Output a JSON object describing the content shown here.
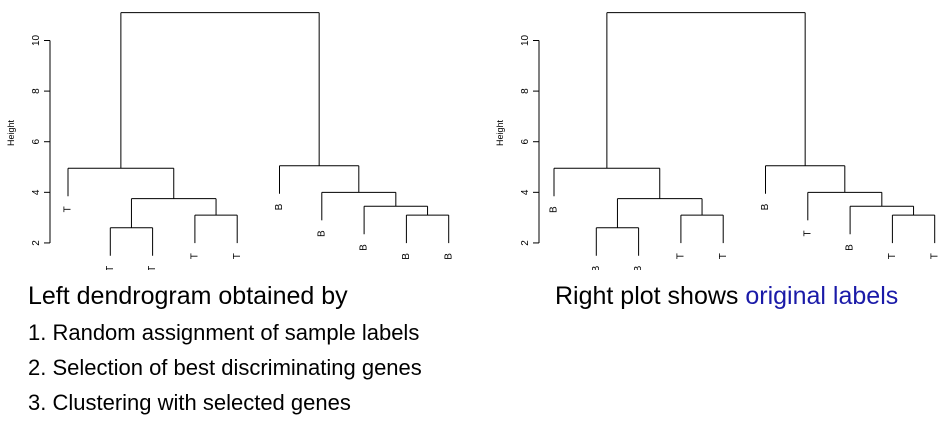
{
  "chart_data": [
    {
      "type": "dendrogram",
      "ylabel": "Height",
      "ylim": [
        1.8,
        11.6
      ],
      "yticks": [
        2,
        4,
        6,
        8,
        10
      ],
      "leaves": [
        "T",
        "T",
        "T",
        "T",
        "T",
        "B",
        "B",
        "B",
        "B",
        "B"
      ],
      "merges": [
        {
          "left": "leaf:1",
          "right": "leaf:2",
          "height": 2.6
        },
        {
          "left": "leaf:3",
          "right": "leaf:4",
          "height": 3.1
        },
        {
          "left": "node:0",
          "right": "node:1",
          "height": 3.75
        },
        {
          "left": "leaf:0",
          "right": "node:2",
          "height": 4.95
        },
        {
          "left": "leaf:8",
          "right": "leaf:9",
          "height": 3.1
        },
        {
          "left": "leaf:7",
          "right": "node:4",
          "height": 3.45
        },
        {
          "left": "leaf:6",
          "right": "node:5",
          "height": 4.0
        },
        {
          "left": "leaf:5",
          "right": "node:6",
          "height": 5.05
        },
        {
          "left": "node:3",
          "right": "node:7",
          "height": 11.1
        }
      ]
    },
    {
      "type": "dendrogram",
      "ylabel": "Height",
      "ylim": [
        1.8,
        11.6
      ],
      "yticks": [
        2,
        4,
        6,
        8,
        10
      ],
      "leaves": [
        "B",
        "B",
        "B",
        "T",
        "T",
        "B",
        "T",
        "B",
        "T",
        "T"
      ],
      "merges": [
        {
          "left": "leaf:1",
          "right": "leaf:2",
          "height": 2.6
        },
        {
          "left": "leaf:3",
          "right": "leaf:4",
          "height": 3.1
        },
        {
          "left": "node:0",
          "right": "node:1",
          "height": 3.75
        },
        {
          "left": "leaf:0",
          "right": "node:2",
          "height": 4.95
        },
        {
          "left": "leaf:8",
          "right": "leaf:9",
          "height": 3.1
        },
        {
          "left": "leaf:7",
          "right": "node:4",
          "height": 3.45
        },
        {
          "left": "leaf:6",
          "right": "node:5",
          "height": 4.0
        },
        {
          "left": "leaf:5",
          "right": "node:6",
          "height": 5.05
        },
        {
          "left": "node:3",
          "right": "node:7",
          "height": 11.1
        }
      ]
    }
  ],
  "captions": {
    "left_title": "Left dendrogram obtained by",
    "steps": [
      "1. Random assignment of sample labels",
      "2. Selection of best discriminating genes",
      "3. Clustering with selected genes"
    ],
    "right_prefix": "Right plot shows ",
    "right_highlight": "original labels",
    "highlight_color": "#1a1aa8"
  }
}
